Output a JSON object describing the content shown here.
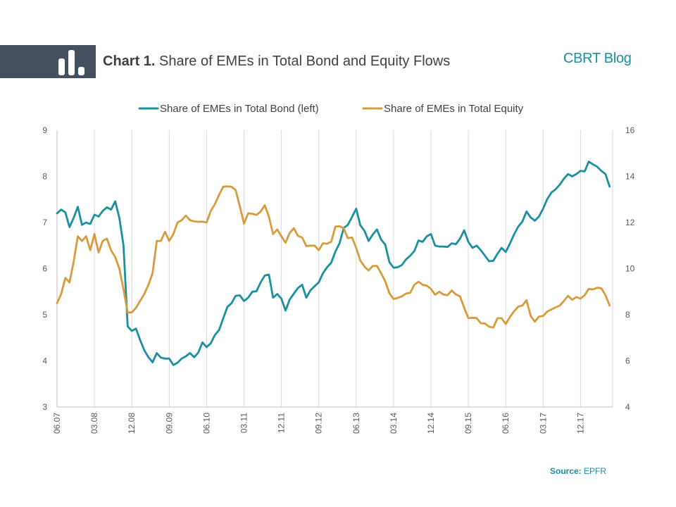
{
  "header": {
    "title_bold": "Chart 1.",
    "title_rest": "Share of EMEs in Total Bond and Equity Flows",
    "brand": "CBRT Blog",
    "accent": "#44505e"
  },
  "footer": {
    "source_label": "Source:",
    "source_value": "EPFR"
  },
  "chart_data": {
    "type": "line",
    "grid": "vertical",
    "legend": "top-center",
    "x_tick_labels": [
      "06.07",
      "03.08",
      "12.08",
      "09.09",
      "06.10",
      "03.11",
      "12.11",
      "09.12",
      "06.13",
      "03.14",
      "12.14",
      "09.15",
      "06.16",
      "03.17",
      "12.17"
    ],
    "y_left": {
      "min": 3,
      "max": 9,
      "ticks": [
        "3",
        "4",
        "5",
        "6",
        "7",
        "8",
        "9"
      ]
    },
    "y_right": {
      "min": 4,
      "max": 16,
      "ticks": [
        "4",
        "6",
        "8",
        "10",
        "12",
        "14",
        "16"
      ]
    },
    "series": [
      {
        "name": "Share of EMEs in Total Bond (left)",
        "axis": "left",
        "color": "#1a8fa0",
        "values": [
          7.2,
          7.28,
          7.22,
          6.9,
          7.1,
          7.34,
          6.95,
          7.0,
          6.97,
          7.17,
          7.13,
          7.25,
          7.33,
          7.28,
          7.46,
          7.1,
          6.5,
          4.75,
          4.65,
          4.7,
          4.45,
          4.23,
          4.08,
          3.97,
          4.17,
          4.07,
          4.05,
          4.05,
          3.91,
          3.96,
          4.05,
          4.1,
          4.17,
          4.08,
          4.18,
          4.4,
          4.3,
          4.38,
          4.56,
          4.67,
          4.92,
          5.17,
          5.25,
          5.41,
          5.42,
          5.3,
          5.37,
          5.5,
          5.51,
          5.7,
          5.85,
          5.87,
          5.37,
          5.45,
          5.35,
          5.09,
          5.33,
          5.46,
          5.58,
          5.65,
          5.37,
          5.53,
          5.62,
          5.7,
          5.9,
          6.03,
          6.13,
          6.37,
          6.55,
          6.88,
          6.95,
          7.12,
          7.3,
          6.94,
          6.82,
          6.6,
          6.74,
          6.85,
          6.63,
          6.52,
          6.14,
          6.02,
          6.03,
          6.08,
          6.2,
          6.28,
          6.38,
          6.61,
          6.58,
          6.7,
          6.75,
          6.5,
          6.48,
          6.48,
          6.47,
          6.55,
          6.53,
          6.65,
          6.83,
          6.58,
          6.45,
          6.5,
          6.4,
          6.28,
          6.16,
          6.17,
          6.32,
          6.45,
          6.36,
          6.54,
          6.74,
          6.91,
          7.02,
          7.24,
          7.11,
          7.04,
          7.13,
          7.3,
          7.51,
          7.65,
          7.72,
          7.82,
          7.95,
          8.05,
          8.0,
          8.05,
          8.12,
          8.11,
          8.32,
          8.26,
          8.21,
          8.12,
          8.05,
          7.78
        ]
      },
      {
        "name": "Share of EMEs in Total Equity",
        "axis": "right",
        "color": "#d69b3c",
        "values": [
          8.5,
          8.9,
          9.6,
          9.4,
          10.3,
          11.4,
          11.2,
          11.4,
          10.8,
          11.5,
          10.7,
          11.2,
          11.3,
          10.8,
          10.5,
          10.0,
          9.1,
          8.1,
          8.1,
          8.3,
          8.6,
          8.9,
          9.3,
          9.8,
          11.2,
          11.2,
          11.6,
          11.2,
          11.5,
          12.0,
          12.1,
          12.3,
          12.1,
          12.05,
          12.03,
          12.04,
          12.0,
          12.5,
          12.8,
          13.2,
          13.55,
          13.57,
          13.55,
          13.4,
          12.7,
          11.95,
          12.4,
          12.38,
          12.33,
          12.47,
          12.75,
          12.25,
          11.5,
          11.7,
          11.4,
          11.12,
          11.55,
          11.75,
          11.42,
          11.35,
          10.98,
          11.0,
          11.0,
          10.8,
          11.1,
          11.08,
          11.17,
          11.82,
          11.84,
          11.75,
          11.32,
          11.35,
          10.9,
          10.35,
          10.09,
          9.92,
          10.12,
          10.12,
          9.8,
          9.45,
          8.93,
          8.68,
          8.73,
          8.8,
          8.92,
          8.95,
          9.3,
          9.43,
          9.3,
          9.26,
          9.12,
          8.87,
          9.0,
          8.88,
          8.85,
          9.05,
          8.88,
          8.8,
          8.3,
          7.85,
          7.87,
          7.86,
          7.63,
          7.62,
          7.48,
          7.44,
          7.85,
          7.85,
          7.6,
          7.9,
          8.15,
          8.35,
          8.4,
          8.63,
          7.95,
          7.7,
          7.92,
          7.95,
          8.14,
          8.23,
          8.32,
          8.4,
          8.6,
          8.82,
          8.65,
          8.77,
          8.7,
          8.85,
          9.12,
          9.1,
          9.17,
          9.15,
          8.85,
          8.4
        ]
      }
    ]
  }
}
